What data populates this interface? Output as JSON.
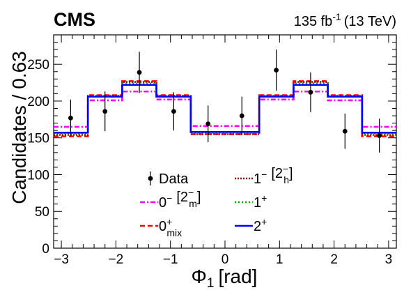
{
  "header": {
    "experiment": "CMS",
    "lumi": "135 fb",
    "lumi_exp": "-1",
    "energy": "(13 TeV)"
  },
  "chart_data": {
    "type": "histogram",
    "xlabel_symbol": "Φ",
    "xlabel_sub": "1",
    "xlabel_unit": "[rad]",
    "ylabel": "Candidates / 0.63",
    "xlim": [
      -3.14159,
      3.14159
    ],
    "ylim": [
      0,
      290
    ],
    "xticks": [
      -3,
      -2,
      -1,
      0,
      1,
      2,
      3
    ],
    "xtick_labels": [
      "−3",
      "−2",
      "−1",
      "0",
      "1",
      "2",
      "3"
    ],
    "yticks": [
      0,
      50,
      100,
      150,
      200,
      250
    ],
    "ytick_labels": [
      "0",
      "50",
      "100",
      "150",
      "200",
      "250"
    ],
    "bin_edges": [
      -3.14159,
      -2.51327,
      -1.88496,
      -1.25664,
      -0.62832,
      0,
      0.62832,
      1.25664,
      1.88496,
      2.51327,
      3.14159
    ],
    "data": {
      "name": "Data",
      "x": [
        -2.83,
        -2.2,
        -1.57,
        -0.94,
        -0.31,
        0.31,
        0.94,
        1.57,
        2.2,
        2.83
      ],
      "y": [
        177,
        186,
        239,
        186,
        169,
        180,
        242,
        212,
        159,
        153
      ],
      "err": [
        25,
        27,
        28,
        26,
        25,
        26,
        28,
        27,
        24,
        23
      ]
    },
    "series": [
      {
        "name": "0⁻ [2⁻m]",
        "color": "#ff00ff",
        "dash": "7,3,2,3",
        "values": [
          165,
          201,
          213,
          202,
          166,
          166,
          202,
          213,
          201,
          165
        ]
      },
      {
        "name": "0⁺mix",
        "color": "#ff0000",
        "dash": "7,4",
        "values": [
          152,
          208,
          227,
          208,
          155,
          155,
          208,
          227,
          208,
          152
        ]
      },
      {
        "name": "1⁻ [2⁻h]",
        "color": "#aa0000",
        "dash": "2,2",
        "values": [
          154,
          207,
          226,
          207,
          155,
          155,
          207,
          226,
          207,
          154
        ]
      },
      {
        "name": "1⁺",
        "color": "#00aa00",
        "dash": "2,3",
        "values": [
          156,
          207,
          224,
          207,
          157,
          157,
          207,
          224,
          207,
          156
        ]
      },
      {
        "name": "2⁺",
        "color": "#0000ff",
        "dash": "",
        "values": [
          157,
          206,
          222,
          206,
          158,
          158,
          206,
          222,
          206,
          157
        ]
      }
    ],
    "legend": {
      "position": "bottom-center",
      "entries": [
        {
          "id": "data",
          "main": "Data",
          "sup": "",
          "sub": "",
          "bracket": ""
        },
        {
          "id": "s3",
          "main": "1",
          "sup": "−",
          "sub": "",
          "bracket": "[2",
          "bracket_sup": "−",
          "bracket_sub": "h",
          "bracket_close": "]"
        },
        {
          "id": "s0",
          "main": "0",
          "sup": "−",
          "sub": "",
          "bracket": "[2",
          "bracket_sup": "−",
          "bracket_sub": "m",
          "bracket_close": "]"
        },
        {
          "id": "s4",
          "main": "1",
          "sup": "+",
          "sub": "",
          "bracket": ""
        },
        {
          "id": "s1",
          "main": "0",
          "sup": "+",
          "sub": "mix",
          "bracket": ""
        },
        {
          "id": "s5",
          "main": "2",
          "sup": "+",
          "sub": "",
          "bracket": ""
        }
      ]
    }
  }
}
